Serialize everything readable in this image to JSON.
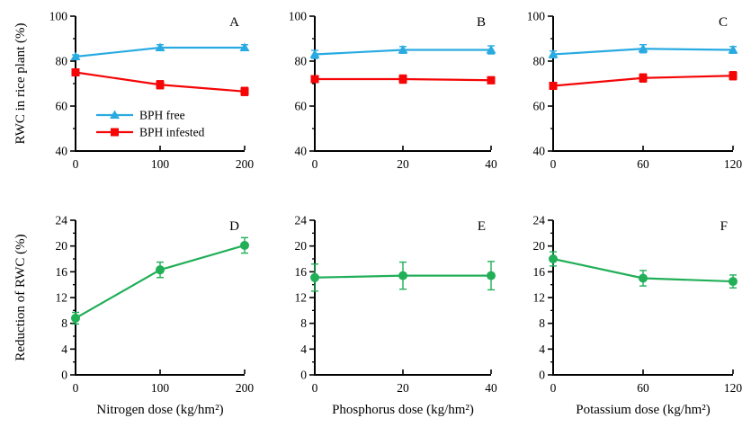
{
  "figure": {
    "background": "#ffffff",
    "axis_color": "#000000",
    "colors": {
      "bph_free": "#29ABE2",
      "bph_infested": "#F50505",
      "reduction": "#21AF58"
    },
    "legend": {
      "position": "inside-panel-A",
      "items": [
        {
          "label": "BPH free",
          "series": "bph_free",
          "marker": "triangle"
        },
        {
          "label": "BPH infested",
          "series": "bph_infested",
          "marker": "square"
        }
      ]
    }
  },
  "chart_data": [
    {
      "id": "A",
      "type": "line",
      "panel_label": "A",
      "ylabel": "RWC in rice plant (%)",
      "xlabel": "",
      "x": [
        0,
        100,
        200
      ],
      "xtick_labels": [
        "0",
        "100",
        "200"
      ],
      "ylim": [
        40,
        100
      ],
      "yticks": [
        40,
        60,
        80,
        100
      ],
      "y_minor_step": 10,
      "grid": false,
      "show_legend": true,
      "series": [
        {
          "name": "BPH free",
          "marker": "triangle",
          "color_key": "bph_free",
          "values": [
            82,
            86,
            86
          ],
          "errors": [
            0.8,
            1.3,
            1.3
          ]
        },
        {
          "name": "BPH infested",
          "marker": "square",
          "color_key": "bph_infested",
          "values": [
            75,
            69.5,
            66.5
          ],
          "errors": [
            0.8,
            1.8,
            1.8
          ]
        }
      ]
    },
    {
      "id": "B",
      "type": "line",
      "panel_label": "B",
      "ylabel": "",
      "xlabel": "",
      "x": [
        0,
        20,
        40
      ],
      "xtick_labels": [
        "0",
        "20",
        "40"
      ],
      "ylim": [
        40,
        100
      ],
      "yticks": [
        40,
        60,
        80,
        100
      ],
      "y_minor_step": 10,
      "grid": false,
      "show_legend": false,
      "series": [
        {
          "name": "BPH free",
          "marker": "triangle",
          "color_key": "bph_free",
          "values": [
            83,
            85,
            85
          ],
          "errors": [
            1.8,
            1.5,
            1.8
          ]
        },
        {
          "name": "BPH infested",
          "marker": "square",
          "color_key": "bph_infested",
          "values": [
            72,
            72,
            71.5
          ],
          "errors": [
            1.5,
            1.8,
            1.5
          ]
        }
      ]
    },
    {
      "id": "C",
      "type": "line",
      "panel_label": "C",
      "ylabel": "",
      "xlabel": "",
      "x": [
        0,
        60,
        120
      ],
      "xtick_labels": [
        "0",
        "60",
        "120"
      ],
      "ylim": [
        40,
        100
      ],
      "yticks": [
        40,
        60,
        80,
        100
      ],
      "y_minor_step": 10,
      "grid": false,
      "show_legend": false,
      "series": [
        {
          "name": "BPH free",
          "marker": "triangle",
          "color_key": "bph_free",
          "values": [
            83,
            85.5,
            85
          ],
          "errors": [
            1.5,
            1.8,
            1.5
          ]
        },
        {
          "name": "BPH infested",
          "marker": "square",
          "color_key": "bph_infested",
          "values": [
            69,
            72.5,
            73.5
          ],
          "errors": [
            1.5,
            1.8,
            1.8
          ]
        }
      ]
    },
    {
      "id": "D",
      "type": "line",
      "panel_label": "D",
      "ylabel": "Reduction of RWC (%)",
      "xlabel": "Nitrogen dose (kg/hm²)",
      "x": [
        0,
        100,
        200
      ],
      "xtick_labels": [
        "0",
        "100",
        "200"
      ],
      "ylim": [
        0,
        24
      ],
      "yticks": [
        0,
        4,
        8,
        12,
        16,
        20,
        24
      ],
      "y_minor_step": 2,
      "grid": false,
      "show_legend": false,
      "series": [
        {
          "name": "Reduction of RWC",
          "marker": "circle",
          "color_key": "reduction",
          "values": [
            8.8,
            16.3,
            20.1
          ],
          "errors": [
            0.9,
            1.2,
            1.2
          ]
        }
      ]
    },
    {
      "id": "E",
      "type": "line",
      "panel_label": "E",
      "ylabel": "",
      "xlabel": "Phosphorus dose (kg/hm²)",
      "x": [
        0,
        20,
        40
      ],
      "xtick_labels": [
        "0",
        "20",
        "40"
      ],
      "ylim": [
        0,
        24
      ],
      "yticks": [
        0,
        4,
        8,
        12,
        16,
        20,
        24
      ],
      "y_minor_step": 2,
      "grid": false,
      "show_legend": false,
      "series": [
        {
          "name": "Reduction of RWC",
          "marker": "circle",
          "color_key": "reduction",
          "values": [
            15.1,
            15.4,
            15.4
          ],
          "errors": [
            2.1,
            2.1,
            2.2
          ]
        }
      ]
    },
    {
      "id": "F",
      "type": "line",
      "panel_label": "F",
      "ylabel": "",
      "xlabel": "Potassium dose (kg/hm²)",
      "x": [
        0,
        60,
        120
      ],
      "xtick_labels": [
        "0",
        "60",
        "120"
      ],
      "ylim": [
        0,
        24
      ],
      "yticks": [
        0,
        4,
        8,
        12,
        16,
        20,
        24
      ],
      "y_minor_step": 2,
      "grid": false,
      "show_legend": false,
      "series": [
        {
          "name": "Reduction of RWC",
          "marker": "circle",
          "color_key": "reduction",
          "values": [
            18,
            15,
            14.5
          ],
          "errors": [
            1.1,
            1.2,
            1.0
          ]
        }
      ]
    }
  ]
}
